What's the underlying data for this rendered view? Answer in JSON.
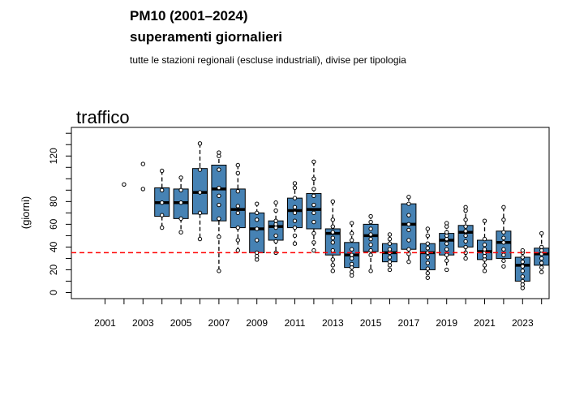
{
  "header": {
    "title_line1": "PM10 (2001–2024)",
    "title_line2": "superamenti giornalieri",
    "subtitle": "tutte le stazioni regionali (escluse industriali), divise per tipologia"
  },
  "chart_data": {
    "type": "boxplot",
    "panel_title": "traffico",
    "ylabel": "(giorni)",
    "xlabel": "",
    "x_tick_labels": [
      "2001",
      "2003",
      "2005",
      "2007",
      "2009",
      "2011",
      "2013",
      "2015",
      "2017",
      "2019",
      "2021",
      "2023"
    ],
    "y_tick_labels": [
      "0",
      "20",
      "40",
      "60",
      "80",
      "120"
    ],
    "ylim": [
      -5,
      145
    ],
    "threshold": 35,
    "colors": {
      "box": "#4682b4",
      "threshold": "#ff0000",
      "median": "#000000",
      "point": "#ffffff"
    },
    "years": [
      {
        "year": 2001,
        "box": null,
        "points": []
      },
      {
        "year": 2002,
        "box": null,
        "points": [
          95
        ]
      },
      {
        "year": 2003,
        "box": null,
        "points": [
          91,
          113
        ]
      },
      {
        "year": 2004,
        "box": [
          57,
          67,
          79,
          92,
          107
        ],
        "points": [
          57,
          68,
          79,
          90,
          107
        ]
      },
      {
        "year": 2005,
        "box": [
          53,
          65,
          79,
          91,
          101
        ],
        "points": [
          53,
          65,
          79,
          90,
          101
        ]
      },
      {
        "year": 2006,
        "box": [
          47,
          69,
          88,
          109,
          131
        ],
        "points": [
          47,
          70,
          88,
          108,
          131
        ]
      },
      {
        "year": 2007,
        "box": [
          19,
          63,
          91,
          112,
          123
        ],
        "points": [
          19,
          49,
          65,
          77,
          85,
          92,
          108,
          120,
          123
        ]
      },
      {
        "year": 2008,
        "box": [
          37,
          57,
          73,
          91,
          112
        ],
        "points": [
          37,
          46,
          57,
          70,
          76,
          89,
          105,
          112
        ]
      },
      {
        "year": 2009,
        "box": [
          29,
          35,
          56,
          70,
          79
        ],
        "points": [
          29,
          32,
          35,
          46,
          56,
          64,
          70,
          78
        ]
      },
      {
        "year": 2010,
        "box": [
          35,
          46,
          58,
          63,
          79
        ],
        "points": [
          35,
          45,
          50,
          57,
          60,
          63,
          72,
          79
        ]
      },
      {
        "year": 2011,
        "box": [
          43,
          57,
          72,
          83,
          96
        ],
        "points": [
          43,
          50,
          57,
          63,
          70,
          75,
          83,
          92,
          96
        ]
      },
      {
        "year": 2012,
        "box": [
          37,
          56,
          73,
          87,
          115
        ],
        "points": [
          37,
          44,
          52,
          62,
          70,
          77,
          85,
          91,
          100,
          115
        ]
      },
      {
        "year": 2013,
        "box": [
          19,
          33,
          52,
          56,
          80
        ],
        "points": [
          19,
          24,
          29,
          37,
          44,
          48,
          53,
          58,
          64,
          80
        ]
      },
      {
        "year": 2014,
        "box": [
          15,
          22,
          33,
          44,
          61
        ],
        "points": [
          15,
          18,
          22,
          25,
          30,
          33,
          38,
          46,
          52,
          61
        ]
      },
      {
        "year": 2015,
        "box": [
          19,
          36,
          50,
          60,
          68
        ],
        "points": [
          19,
          33,
          37,
          42,
          47,
          51,
          56,
          62,
          67
        ]
      },
      {
        "year": 2016,
        "box": [
          20,
          27,
          35,
          43,
          51
        ],
        "points": [
          20,
          24,
          27,
          31,
          35,
          38,
          43,
          47,
          51
        ]
      },
      {
        "year": 2017,
        "box": [
          27,
          38,
          60,
          78,
          84
        ],
        "points": [
          27,
          34,
          38,
          46,
          55,
          60,
          68,
          78,
          84
        ]
      },
      {
        "year": 2018,
        "box": [
          13,
          20,
          35,
          43,
          56
        ],
        "points": [
          13,
          17,
          21,
          26,
          31,
          35,
          39,
          43,
          50,
          56
        ]
      },
      {
        "year": 2019,
        "box": [
          20,
          33,
          46,
          52,
          61
        ],
        "points": [
          20,
          28,
          33,
          38,
          43,
          47,
          50,
          53,
          58,
          61
        ]
      },
      {
        "year": 2020,
        "box": [
          30,
          40,
          53,
          59,
          75
        ],
        "points": [
          30,
          35,
          40,
          45,
          50,
          54,
          58,
          64,
          72,
          75
        ]
      },
      {
        "year": 2021,
        "box": [
          19,
          29,
          36,
          46,
          63
        ],
        "points": [
          19,
          24,
          29,
          32,
          35,
          38,
          42,
          47,
          63
        ]
      },
      {
        "year": 2022,
        "box": [
          23,
          30,
          44,
          54,
          75
        ],
        "points": [
          23,
          28,
          33,
          38,
          44,
          48,
          53,
          64,
          75
        ]
      },
      {
        "year": 2023,
        "box": [
          4,
          10,
          24,
          31,
          37
        ],
        "points": [
          4,
          7,
          10,
          14,
          19,
          23,
          27,
          31,
          35,
          37
        ]
      },
      {
        "year": 2024,
        "box": [
          18,
          24,
          34,
          39,
          52
        ],
        "points": [
          18,
          22,
          26,
          30,
          34,
          37,
          40,
          52
        ]
      }
    ]
  }
}
